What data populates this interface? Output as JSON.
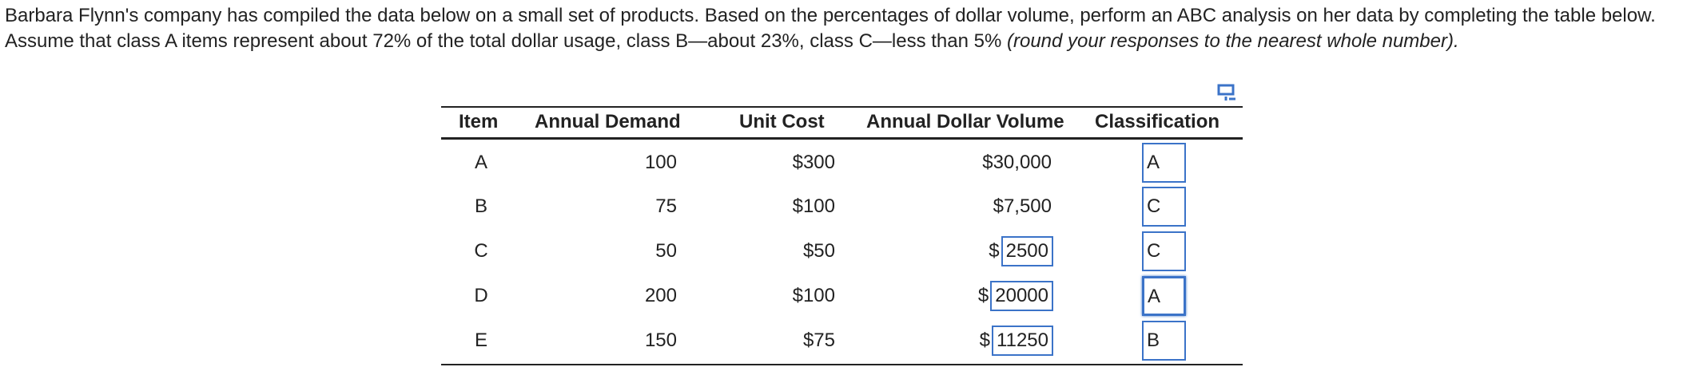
{
  "question": {
    "text": "Barbara Flynn's company has compiled the data below on a small set of products. Based on the percentages of dollar volume, perform an ABC analysis on her data by completing the table below. Assume that class A items represent about 72% of the total dollar usage, class B—about 23%, class C—less than 5%",
    "note": "(round your responses to the nearest whole number)."
  },
  "table": {
    "headers": [
      "Item",
      "Annual Demand",
      "Unit Cost",
      "Annual Dollar Volume",
      "Classification"
    ],
    "rows": [
      [
        "A",
        "100",
        "$300",
        "$30,000",
        "A"
      ],
      [
        "B",
        "75",
        "$100",
        "$7,500",
        "C"
      ],
      [
        "C",
        "50",
        "$50",
        {
          "prefix": "$",
          "input": "2500"
        },
        "C"
      ],
      [
        "D",
        "200",
        "$100",
        {
          "prefix": "$",
          "input": "20000"
        },
        "A"
      ],
      [
        "E",
        "150",
        "$75",
        {
          "prefix": "$",
          "input": "11250"
        },
        "B"
      ]
    ]
  }
}
